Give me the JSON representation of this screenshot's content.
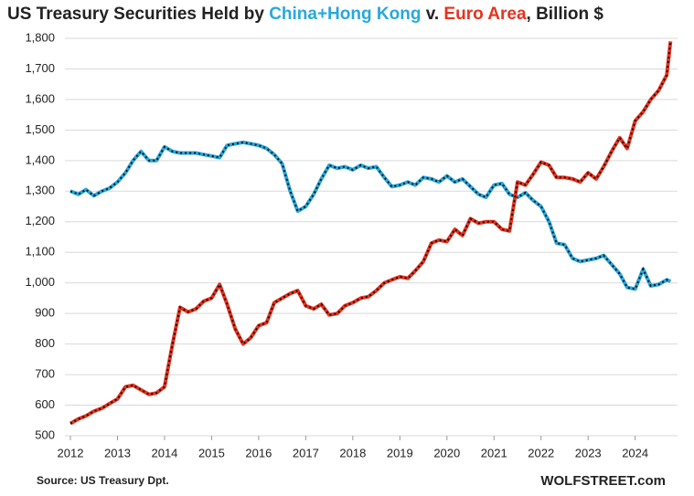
{
  "chart_data": {
    "type": "line",
    "title": [
      "US Treasury Securities Held by ",
      " v. ",
      ", Billion $"
    ],
    "source": "Source: US Treasury  Dpt.",
    "brand": "WOLFSTREET.com",
    "x": [
      2012,
      2012.17,
      2012.33,
      2012.5,
      2012.67,
      2012.83,
      2013,
      2013.17,
      2013.33,
      2013.5,
      2013.67,
      2013.83,
      2014,
      2014.17,
      2014.33,
      2014.5,
      2014.67,
      2014.83,
      2015,
      2015.17,
      2015.33,
      2015.5,
      2015.67,
      2015.83,
      2016,
      2016.17,
      2016.33,
      2016.5,
      2016.67,
      2016.83,
      2017,
      2017.17,
      2017.33,
      2017.5,
      2017.67,
      2017.83,
      2018,
      2018.17,
      2018.33,
      2018.5,
      2018.67,
      2018.83,
      2019,
      2019.17,
      2019.33,
      2019.5,
      2019.67,
      2019.83,
      2020,
      2020.17,
      2020.33,
      2020.5,
      2020.67,
      2020.83,
      2021,
      2021.17,
      2021.33,
      2021.5,
      2021.67,
      2021.83,
      2022,
      2022.17,
      2022.33,
      2022.5,
      2022.67,
      2022.83,
      2023,
      2023.17,
      2023.33,
      2023.5,
      2023.67,
      2023.83,
      2024,
      2024.17,
      2024.33,
      2024.5,
      2024.67,
      2024.75
    ],
    "series": [
      {
        "name": "China+Hong Kong",
        "color": "#2aa7dc",
        "values": [
          1300,
          1290,
          1305,
          1285,
          1300,
          1310,
          1330,
          1360,
          1400,
          1430,
          1400,
          1400,
          1445,
          1430,
          1425,
          1425,
          1425,
          1420,
          1415,
          1410,
          1450,
          1455,
          1460,
          1455,
          1450,
          1440,
          1420,
          1390,
          1300,
          1235,
          1250,
          1290,
          1340,
          1385,
          1375,
          1380,
          1370,
          1385,
          1375,
          1380,
          1345,
          1315,
          1320,
          1330,
          1320,
          1345,
          1340,
          1330,
          1350,
          1330,
          1340,
          1315,
          1290,
          1280,
          1320,
          1325,
          1290,
          1280,
          1295,
          1270,
          1250,
          1200,
          1130,
          1125,
          1080,
          1070,
          1075,
          1080,
          1090,
          1060,
          1030,
          985,
          980,
          1045,
          990,
          995,
          1010,
          1005
        ]
      },
      {
        "name": "Euro Area",
        "color": "#e8321e",
        "values": [
          540,
          555,
          565,
          580,
          590,
          605,
          620,
          660,
          665,
          650,
          635,
          640,
          660,
          800,
          920,
          905,
          915,
          940,
          950,
          995,
          930,
          850,
          800,
          820,
          860,
          870,
          935,
          950,
          965,
          975,
          925,
          915,
          930,
          895,
          900,
          925,
          935,
          950,
          955,
          975,
          1000,
          1010,
          1020,
          1015,
          1040,
          1070,
          1130,
          1140,
          1135,
          1175,
          1155,
          1210,
          1195,
          1200,
          1200,
          1175,
          1170,
          1330,
          1320,
          1355,
          1395,
          1385,
          1345,
          1345,
          1340,
          1330,
          1360,
          1340,
          1380,
          1430,
          1475,
          1440,
          1530,
          1560,
          1600,
          1630,
          1680,
          1790
        ]
      }
    ],
    "xlim": [
      2012,
      2024.9
    ],
    "xticks": [
      2012,
      2013,
      2014,
      2015,
      2016,
      2017,
      2018,
      2019,
      2020,
      2021,
      2022,
      2023,
      2024
    ],
    "ylim": [
      500,
      1800
    ],
    "yticks": [
      500,
      600,
      700,
      800,
      900,
      {
        "value": 1000,
        "label": "1,000"
      },
      {
        "value": 1100,
        "label": "1,100"
      },
      {
        "value": 1200,
        "label": "1,200"
      },
      {
        "value": 1300,
        "label": "1,300"
      },
      {
        "value": 1400,
        "label": "1,400"
      },
      {
        "value": 1500,
        "label": "1,500"
      },
      {
        "value": 1600,
        "label": "1,600"
      },
      {
        "value": 1700,
        "label": "1,700"
      },
      {
        "value": 1800,
        "label": "1,800"
      }
    ],
    "grid": true
  }
}
